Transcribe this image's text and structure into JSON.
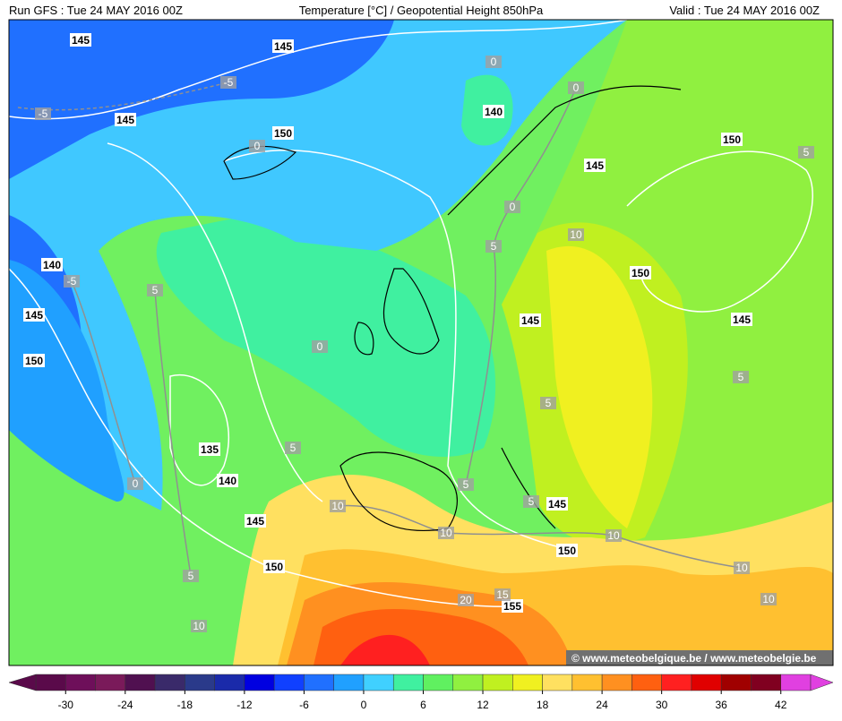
{
  "header": {
    "left": "Run GFS : Tue 24 MAY 2016 00Z",
    "center": "Temperature [°C] / Geopotential Height 850hPa",
    "right": "Valid : Tue 24 MAY 2016 00Z"
  },
  "map": {
    "height_labels": [
      "145",
      "145",
      "145",
      "150",
      "140",
      "145",
      "150",
      "140",
      "145",
      "150",
      "150",
      "145",
      "145",
      "135",
      "140",
      "145",
      "150",
      "145",
      "150",
      "155"
    ],
    "temperature_labels": [
      "-5",
      "-5",
      "0",
      "0",
      "0",
      "0",
      "5",
      "10",
      "-5",
      "5",
      "0",
      "5",
      "5",
      "5",
      "0",
      "5",
      "5",
      "10",
      "10",
      "10",
      "10",
      "5",
      "10",
      "20",
      "15",
      "10",
      "5"
    ],
    "watermark": "© www.meteobelgique.be / www.meteobelgie.be"
  },
  "colorbar": {
    "range": [
      -33,
      45
    ],
    "colors": [
      "#5a0a4a",
      "#6e0f5a",
      "#7a1a5a",
      "#501050",
      "#3a2a6a",
      "#2a3a8a",
      "#1a2aaa",
      "#0000e0",
      "#1040ff",
      "#2070ff",
      "#20a0ff",
      "#40d0ff",
      "#40f0a0",
      "#60f060",
      "#90f040",
      "#c0f020",
      "#f0f020",
      "#ffe060",
      "#ffc030",
      "#ff9020",
      "#ff6010",
      "#ff2020",
      "#e00000",
      "#a00000",
      "#800020",
      "#e040e0"
    ],
    "ticks": [
      -30,
      -24,
      -18,
      -12,
      -6,
      0,
      6,
      12,
      18,
      24,
      30,
      36,
      42
    ]
  }
}
